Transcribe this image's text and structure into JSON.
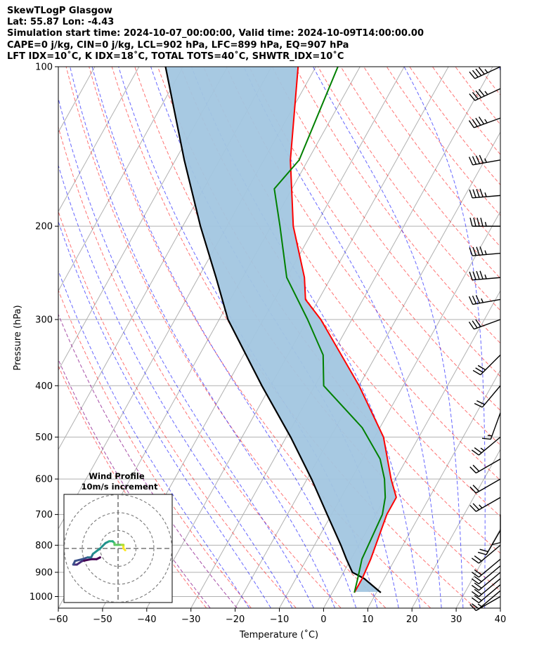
{
  "header": {
    "title": "SkewTLogP Glasgow",
    "location": "Lat: 55.87   Lon: -4.43",
    "times": "Simulation start time: 2024-10-07_00:00:00, Valid time: 2024-10-09T14:00:00.00",
    "params": "CAPE=0 j/kg, CIN=0 j/kg, LCL=902 hPa, LFC=899 hPa, EQ=907 hPa",
    "indices": "LFT IDX=10˚C, K IDX=18˚C, TOTAL TOTS=40˚C, SHWTR_IDX=10˚C"
  },
  "chart_data": [
    {
      "type": "line",
      "kind": "skew-T log-P diagram",
      "xlabel": "Temperature (˚C)",
      "ylabel": "Pressure (hPa)",
      "xlim": [
        -60,
        40
      ],
      "ylim": [
        1050,
        100
      ],
      "y_scale": "log",
      "x_ticks": [
        -60,
        -50,
        -40,
        -30,
        -20,
        -10,
        0,
        10,
        20,
        30,
        40
      ],
      "x_tick_labels": [
        "−60",
        "−50",
        "−40",
        "−30",
        "−20",
        "−10",
        "0",
        "10",
        "20",
        "30",
        "40"
      ],
      "y_ticks": [
        1000,
        900,
        800,
        700,
        600,
        500,
        400,
        300,
        200,
        100
      ],
      "grid": true,
      "series": [
        {
          "role": "temperature",
          "color": "#ff0000",
          "p": [
            983,
            925,
            850,
            700,
            650,
            600,
            500,
            400,
            300,
            275,
            250,
            200,
            150,
            100
          ],
          "t": [
            5,
            5,
            4.5,
            2.5,
            2.5,
            -1,
            -8,
            -20,
            -37,
            -43,
            -46,
            -55,
            -64,
            -74
          ]
        },
        {
          "role": "dewpoint",
          "color": "#008000",
          "p": [
            983,
            925,
            850,
            700,
            650,
            600,
            550,
            480,
            400,
            350,
            300,
            250,
            200,
            170,
            150,
            100
          ],
          "t": [
            5,
            4,
            2.5,
            1.5,
            0,
            -2.5,
            -6,
            -14,
            -28,
            -32,
            -40,
            -50,
            -58,
            -64,
            -62,
            -65
          ]
        },
        {
          "role": "parcel profile",
          "color": "#000000",
          "p": [
            983,
            925,
            900,
            850,
            800,
            700,
            600,
            500,
            400,
            300,
            250,
            200,
            150,
            100
          ],
          "t": [
            11,
            5.5,
            2,
            -1,
            -4,
            -11,
            -19,
            -29,
            -42,
            -58,
            -66,
            -76,
            -88,
            -104
          ]
        }
      ],
      "reference_lines": {
        "dry_adiabats": "#ff0000",
        "moist_adiabats": "#0000ff",
        "mixing_ratio": "#808080",
        "isotherms": "#808080",
        "freezing_level": "#800080"
      },
      "shading": {
        "color": "#a2c6e0",
        "between": [
          "temperature",
          "parcel profile"
        ]
      },
      "wind_barbs": {
        "color": "#000000",
        "p": [
          1000,
          975,
          950,
          925,
          900,
          875,
          850,
          800,
          750,
          700,
          650,
          600,
          550,
          500,
          450,
          400,
          350,
          300,
          275,
          250,
          225,
          200,
          175,
          150,
          125,
          110,
          100
        ],
        "speed_kt": [
          10,
          15,
          20,
          20,
          20,
          20,
          20,
          20,
          20,
          10,
          25,
          20,
          20,
          25,
          15,
          20,
          30,
          30,
          35,
          45,
          45,
          45,
          45,
          45,
          45,
          45,
          45
        ],
        "dir_deg": [
          240,
          230,
          230,
          230,
          230,
          230,
          230,
          230,
          210,
          180,
          240,
          240,
          240,
          230,
          200,
          220,
          225,
          250,
          260,
          265,
          265,
          270,
          265,
          260,
          250,
          245,
          245
        ]
      }
    },
    {
      "type": "line",
      "kind": "hodograph",
      "title": "Wind Profile",
      "subtitle": "10m/s increment",
      "ring_increment": 10,
      "rings": [
        10,
        20,
        30
      ],
      "colormap": "viridis",
      "u": [
        -10,
        -12,
        -15,
        -20,
        -23,
        -25,
        -24,
        -20,
        -17,
        -15,
        -14,
        -10,
        -7,
        -5,
        -3,
        -2,
        -2,
        0,
        2,
        3,
        3,
        3,
        4
      ],
      "v": [
        -5,
        -6,
        -6,
        -7,
        -9,
        -9,
        -7,
        -6,
        -5,
        -5,
        -3,
        0,
        3,
        4,
        4,
        3,
        2,
        2,
        2,
        2,
        1,
        0,
        -1
      ]
    }
  ]
}
